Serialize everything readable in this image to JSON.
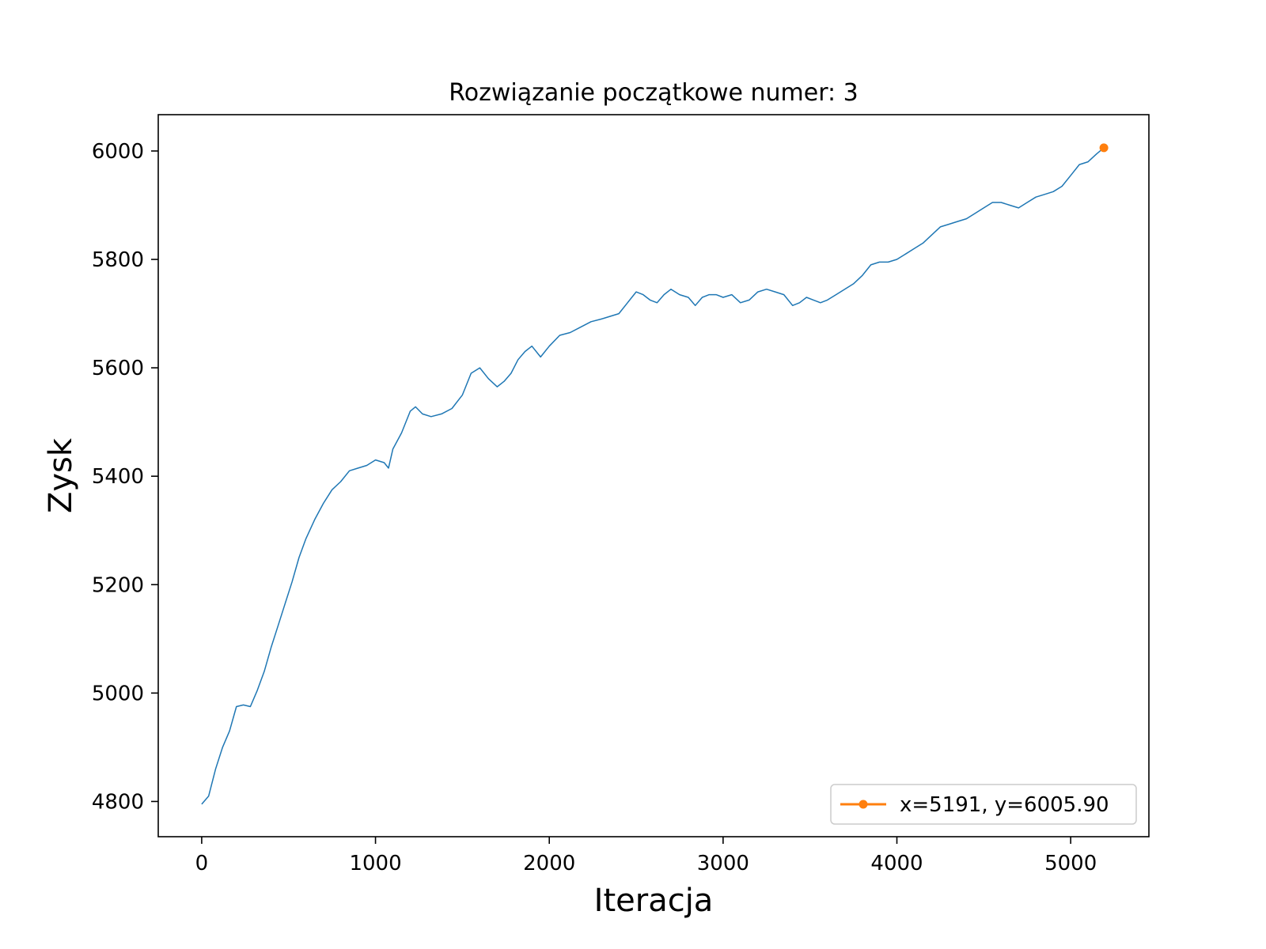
{
  "chart_data": {
    "type": "line",
    "title": "Rozwiązanie początkowe numer: 3",
    "xlabel": "Iteracja",
    "ylabel": "Zysk",
    "xlim": [
      -250,
      5450
    ],
    "ylim": [
      4735,
      6067
    ],
    "xticks": [
      0,
      1000,
      2000,
      3000,
      4000,
      5000
    ],
    "yticks": [
      4800,
      5000,
      5200,
      5400,
      5600,
      5800,
      6000
    ],
    "grid": false,
    "legend_position": "lower-right",
    "series": [
      {
        "color": "#1f77b4",
        "x": [
          0,
          40,
          80,
          120,
          160,
          200,
          240,
          280,
          320,
          360,
          400,
          440,
          480,
          520,
          560,
          600,
          650,
          700,
          750,
          800,
          850,
          900,
          950,
          1000,
          1050,
          1075,
          1100,
          1150,
          1200,
          1230,
          1270,
          1320,
          1380,
          1440,
          1500,
          1550,
          1600,
          1650,
          1700,
          1740,
          1780,
          1820,
          1860,
          1900,
          1950,
          2000,
          2060,
          2120,
          2180,
          2240,
          2300,
          2350,
          2400,
          2450,
          2500,
          2540,
          2580,
          2620,
          2660,
          2700,
          2750,
          2800,
          2840,
          2880,
          2920,
          2960,
          3000,
          3050,
          3100,
          3150,
          3200,
          3250,
          3300,
          3350,
          3400,
          3440,
          3480,
          3520,
          3560,
          3600,
          3650,
          3700,
          3750,
          3800,
          3850,
          3900,
          3950,
          4000,
          4050,
          4100,
          4150,
          4200,
          4250,
          4300,
          4350,
          4400,
          4450,
          4500,
          4550,
          4600,
          4650,
          4700,
          4750,
          4800,
          4850,
          4900,
          4950,
          5000,
          5050,
          5100,
          5150,
          5191
        ],
        "y": [
          4795,
          4810,
          4860,
          4900,
          4930,
          4975,
          4978,
          4975,
          5005,
          5040,
          5085,
          5125,
          5165,
          5205,
          5250,
          5285,
          5320,
          5350,
          5375,
          5390,
          5410,
          5415,
          5420,
          5430,
          5425,
          5415,
          5450,
          5480,
          5520,
          5528,
          5515,
          5510,
          5515,
          5525,
          5550,
          5590,
          5600,
          5580,
          5565,
          5575,
          5590,
          5615,
          5630,
          5640,
          5620,
          5640,
          5660,
          5665,
          5675,
          5685,
          5690,
          5695,
          5700,
          5720,
          5740,
          5735,
          5725,
          5720,
          5735,
          5745,
          5735,
          5730,
          5715,
          5730,
          5735,
          5735,
          5730,
          5735,
          5720,
          5725,
          5740,
          5745,
          5740,
          5735,
          5715,
          5720,
          5730,
          5725,
          5720,
          5725,
          5735,
          5745,
          5755,
          5770,
          5790,
          5795,
          5795,
          5800,
          5810,
          5820,
          5830,
          5845,
          5860,
          5865,
          5870,
          5875,
          5885,
          5895,
          5905,
          5905,
          5900,
          5895,
          5905,
          5915,
          5920,
          5925,
          5935,
          5955,
          5975,
          5980,
          5995,
          6005.9
        ]
      }
    ],
    "marker": {
      "x": 5191,
      "y": 6005.9,
      "color": "#ff7f0e"
    },
    "legend": [
      {
        "label": "x=5191, y=6005.90",
        "color": "#ff7f0e"
      }
    ]
  }
}
